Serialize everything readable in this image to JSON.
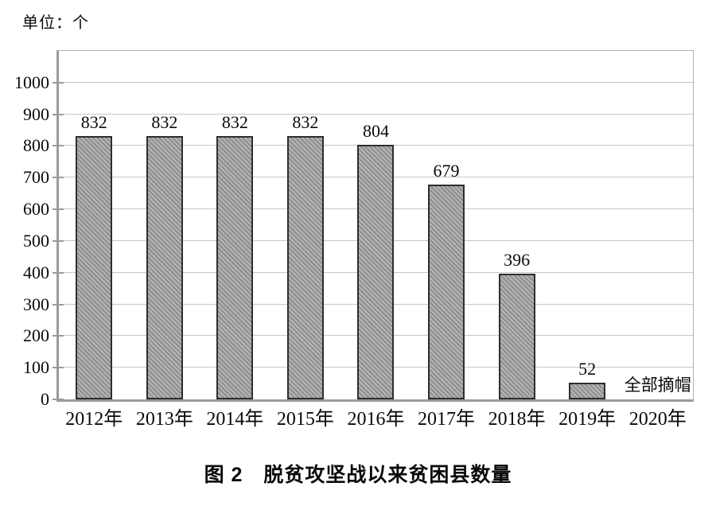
{
  "unit_label": "单位：个",
  "caption": "图 2　脱贫攻坚战以来贫困县数量",
  "chart_data": {
    "type": "bar",
    "title": "图 2　脱贫攻坚战以来贫困县数量",
    "unit": "单位：个",
    "categories": [
      "2012年",
      "2013年",
      "2014年",
      "2015年",
      "2016年",
      "2017年",
      "2018年",
      "2019年",
      "2020年"
    ],
    "values": [
      832,
      832,
      832,
      832,
      804,
      679,
      396,
      52,
      null
    ],
    "data_labels": [
      "832",
      "832",
      "832",
      "832",
      "804",
      "679",
      "396",
      "52",
      ""
    ],
    "annotations": [
      {
        "category_index": 8,
        "text": "全部摘帽"
      }
    ],
    "xlabel": "",
    "ylabel": "",
    "ylim": [
      0,
      1100
    ],
    "yticks": [
      0,
      100,
      200,
      300,
      400,
      500,
      600,
      700,
      800,
      900,
      1000
    ],
    "grid": true,
    "legend": "none",
    "style": {
      "bar_fill": "#a2a2a2",
      "bar_hatch": "forward-diagonal",
      "bar_hatch_dark": "#8e8e8e",
      "bar_hatch_light": "#b5b5b5",
      "bar_border": "#2e2e2e",
      "gridline_color": "#c6c6c6",
      "axis_color": "#9a9a9a",
      "text_color": "#0a0a0a"
    }
  }
}
